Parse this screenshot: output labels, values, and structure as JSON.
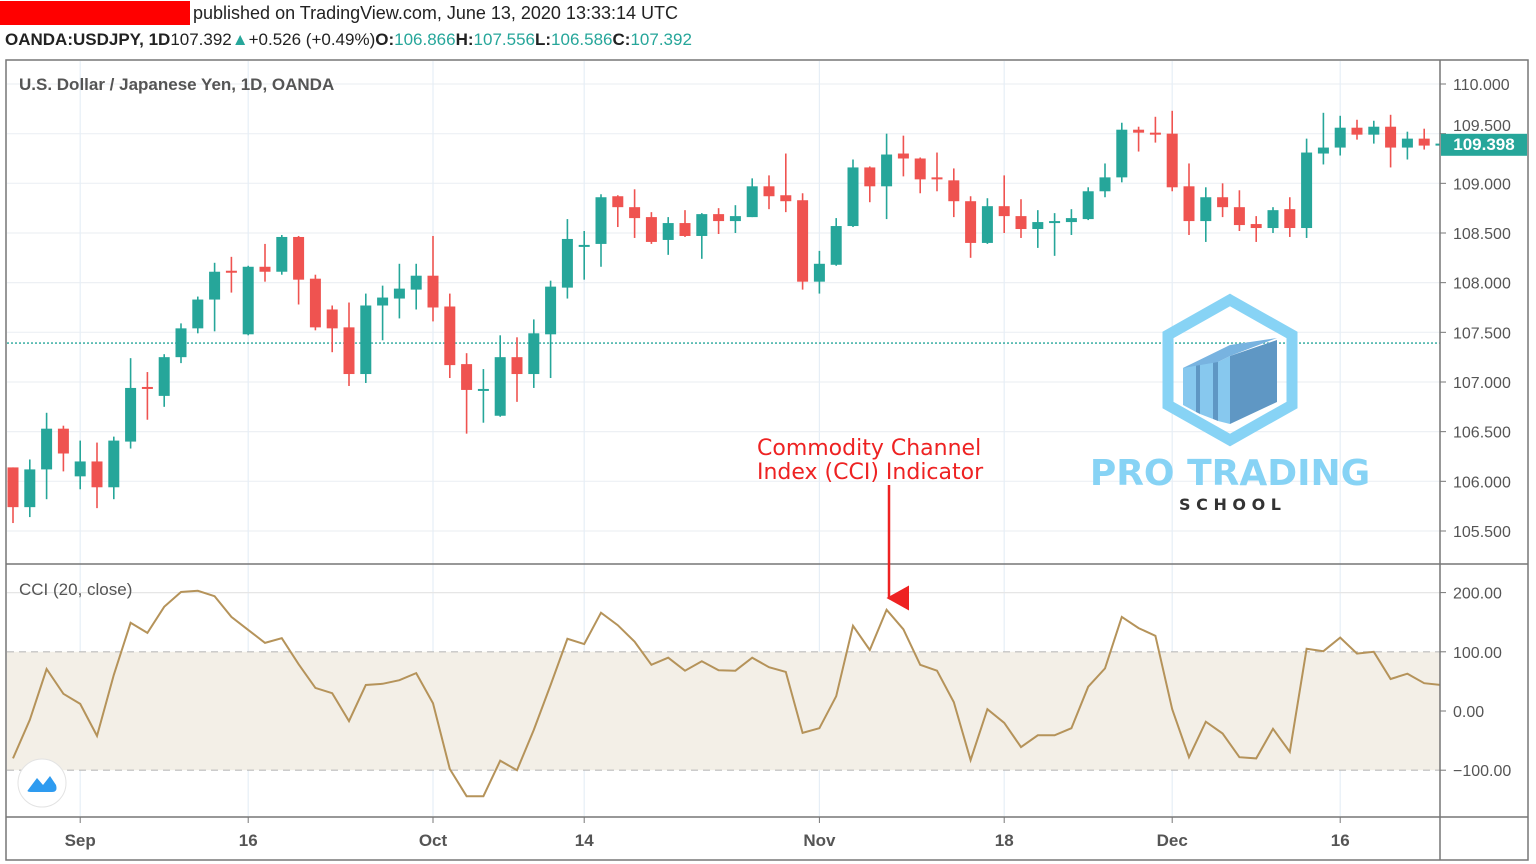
{
  "header": {
    "published": "published on TradingView.com, June 13, 2020 13:33:14 UTC",
    "symbol": "OANDA:USDJPY, 1D",
    "last": "107.392",
    "change": "+0.526 (+0.49%)",
    "o_label": "O:",
    "o": "106.866",
    "h_label": "H:",
    "h": "107.556",
    "l_label": "L:",
    "l": "106.586",
    "c_label": "C:",
    "c": "107.392",
    "up_icon": "triangle-up-icon"
  },
  "colors": {
    "up": "#26a69a",
    "down": "#ef5350",
    "cci": "#b5935a",
    "band": "#f3efe7",
    "annotation": "#ee2222",
    "logo": "#87d3f5"
  },
  "annotation": {
    "line1": "Commodity Channel",
    "line2": "Index (CCI) Indicator"
  },
  "logo": {
    "text1": "PRO TRADING",
    "text2": "S C H O O L"
  },
  "chart_data": [
    {
      "type": "candlestick",
      "title": "U.S. Dollar / Japanese Yen, 1D, OANDA",
      "ylim": [
        105.3,
        110.25
      ],
      "yticks": [
        "110.000",
        "109.500",
        "109.000",
        "108.500",
        "108.000",
        "107.500",
        "107.000",
        "106.500",
        "106.000",
        "105.500"
      ],
      "last_price_label": "109.398",
      "price_line": 107.392,
      "grid": true,
      "xticks": [
        {
          "label": "Sep",
          "candle": 4
        },
        {
          "label": "16",
          "candle": 14
        },
        {
          "label": "Oct",
          "candle": 25
        },
        {
          "label": "14",
          "candle": 34
        },
        {
          "label": "Nov",
          "candle": 48
        },
        {
          "label": "18",
          "candle": 59
        },
        {
          "label": "Dec",
          "candle": 69
        },
        {
          "label": "16",
          "candle": 79
        }
      ],
      "ohlc": [
        [
          106.14,
          106.14,
          105.58,
          105.74
        ],
        [
          105.74,
          106.22,
          105.64,
          106.12
        ],
        [
          106.12,
          106.69,
          105.82,
          106.53
        ],
        [
          106.53,
          106.56,
          106.1,
          106.28
        ],
        [
          106.05,
          106.41,
          105.92,
          106.2
        ],
        [
          106.2,
          106.39,
          105.73,
          105.94
        ],
        [
          105.94,
          106.45,
          105.82,
          106.41
        ],
        [
          106.4,
          107.24,
          106.33,
          106.94
        ],
        [
          106.95,
          107.1,
          106.62,
          106.93
        ],
        [
          106.86,
          107.28,
          106.75,
          107.25
        ],
        [
          107.25,
          107.59,
          107.19,
          107.54
        ],
        [
          107.54,
          107.86,
          107.49,
          107.83
        ],
        [
          107.83,
          108.2,
          107.51,
          108.11
        ],
        [
          108.12,
          108.26,
          107.9,
          108.1
        ],
        [
          107.48,
          108.17,
          107.47,
          108.16
        ],
        [
          108.16,
          108.39,
          108.01,
          108.11
        ],
        [
          108.11,
          108.48,
          108.08,
          108.46
        ],
        [
          108.46,
          108.47,
          107.78,
          108.03
        ],
        [
          108.04,
          108.08,
          107.52,
          107.55
        ],
        [
          107.73,
          107.77,
          107.3,
          107.54
        ],
        [
          107.55,
          107.8,
          106.96,
          107.08
        ],
        [
          107.08,
          107.89,
          106.99,
          107.77
        ],
        [
          107.77,
          107.97,
          107.42,
          107.85
        ],
        [
          107.84,
          108.19,
          107.64,
          107.94
        ],
        [
          107.93,
          108.19,
          107.73,
          108.07
        ],
        [
          108.07,
          108.47,
          107.61,
          107.75
        ],
        [
          107.76,
          107.89,
          107.04,
          107.17
        ],
        [
          107.18,
          107.29,
          106.48,
          106.92
        ],
        [
          106.91,
          107.13,
          106.59,
          106.93
        ],
        [
          106.66,
          107.47,
          106.65,
          107.25
        ],
        [
          107.25,
          107.45,
          106.8,
          107.08
        ],
        [
          107.08,
          107.63,
          106.94,
          107.49
        ],
        [
          107.48,
          108.02,
          107.04,
          107.96
        ],
        [
          107.95,
          108.64,
          107.84,
          108.44
        ],
        [
          108.37,
          108.52,
          108.03,
          108.38
        ],
        [
          108.39,
          108.89,
          108.16,
          108.86
        ],
        [
          108.87,
          108.88,
          108.56,
          108.76
        ],
        [
          108.76,
          108.94,
          108.45,
          108.65
        ],
        [
          108.66,
          108.71,
          108.39,
          108.41
        ],
        [
          108.43,
          108.66,
          108.28,
          108.6
        ],
        [
          108.6,
          108.73,
          108.46,
          108.47
        ],
        [
          108.47,
          108.7,
          108.24,
          108.69
        ],
        [
          108.69,
          108.75,
          108.49,
          108.62
        ],
        [
          108.62,
          108.78,
          108.5,
          108.67
        ],
        [
          108.66,
          109.05,
          108.66,
          108.97
        ],
        [
          108.97,
          109.08,
          108.74,
          108.87
        ],
        [
          108.88,
          109.3,
          108.71,
          108.82
        ],
        [
          108.83,
          108.9,
          107.93,
          108.01
        ],
        [
          108.01,
          108.32,
          107.89,
          108.19
        ],
        [
          108.18,
          108.65,
          108.17,
          108.57
        ],
        [
          108.57,
          109.24,
          108.56,
          109.16
        ],
        [
          109.16,
          109.17,
          108.81,
          108.97
        ],
        [
          108.97,
          109.5,
          108.64,
          109.29
        ],
        [
          109.3,
          109.48,
          109.07,
          109.25
        ],
        [
          109.25,
          109.26,
          108.9,
          109.04
        ],
        [
          109.06,
          109.31,
          108.92,
          109.04
        ],
        [
          109.03,
          109.15,
          108.66,
          108.82
        ],
        [
          108.82,
          108.87,
          108.25,
          108.4
        ],
        [
          108.4,
          108.85,
          108.39,
          108.77
        ],
        [
          108.77,
          109.08,
          108.5,
          108.67
        ],
        [
          108.67,
          108.84,
          108.45,
          108.54
        ],
        [
          108.54,
          108.73,
          108.35,
          108.61
        ],
        [
          108.61,
          108.7,
          108.27,
          108.62
        ],
        [
          108.61,
          108.74,
          108.48,
          108.65
        ],
        [
          108.64,
          108.96,
          108.63,
          108.92
        ],
        [
          108.92,
          109.2,
          108.86,
          109.06
        ],
        [
          109.06,
          109.61,
          109.01,
          109.54
        ],
        [
          109.54,
          109.57,
          109.32,
          109.51
        ],
        [
          109.51,
          109.67,
          109.41,
          109.49
        ],
        [
          109.5,
          109.73,
          108.92,
          108.96
        ],
        [
          108.97,
          109.2,
          108.48,
          108.62
        ],
        [
          108.62,
          108.96,
          108.41,
          108.86
        ],
        [
          108.86,
          109.0,
          108.66,
          108.76
        ],
        [
          108.76,
          108.93,
          108.52,
          108.58
        ],
        [
          108.59,
          108.67,
          108.41,
          108.55
        ],
        [
          108.55,
          108.76,
          108.5,
          108.73
        ],
        [
          108.74,
          108.86,
          108.46,
          108.55
        ],
        [
          108.55,
          109.45,
          108.45,
          109.31
        ],
        [
          109.3,
          109.71,
          109.19,
          109.36
        ],
        [
          109.36,
          109.68,
          109.28,
          109.56
        ],
        [
          109.56,
          109.64,
          109.44,
          109.49
        ],
        [
          109.49,
          109.63,
          109.4,
          109.57
        ],
        [
          109.57,
          109.69,
          109.16,
          109.36
        ],
        [
          109.36,
          109.52,
          109.24,
          109.45
        ],
        [
          109.45,
          109.55,
          109.34,
          109.38
        ],
        [
          109.38,
          109.45,
          109.35,
          109.4
        ]
      ]
    },
    {
      "type": "line",
      "title": "CCI (20, close)",
      "ylim": [
        -175,
        230
      ],
      "yticks": [
        "200.00",
        "100.00",
        "0.00",
        "−100.00"
      ],
      "band": [
        -100,
        100
      ],
      "values": [
        -80,
        -15,
        71,
        29,
        12,
        -42,
        61,
        149,
        132,
        176,
        201,
        203,
        194,
        159,
        137,
        115,
        123,
        79,
        39,
        30,
        -17,
        44,
        46,
        52,
        64,
        13,
        -98,
        -144,
        -144,
        -84,
        -100,
        -32,
        44,
        122,
        113,
        166,
        145,
        117,
        78,
        90,
        68,
        84,
        69,
        68,
        90,
        74,
        66,
        -37,
        -29,
        25,
        144,
        103,
        171,
        138,
        78,
        68,
        15,
        -83,
        3,
        -20,
        -61,
        -41,
        -41,
        -29,
        41,
        72,
        159,
        140,
        127,
        3,
        -78,
        -18,
        -38,
        -78,
        -80,
        -30,
        -69,
        105,
        101,
        124,
        97,
        100,
        54,
        63,
        47,
        44
      ]
    }
  ]
}
